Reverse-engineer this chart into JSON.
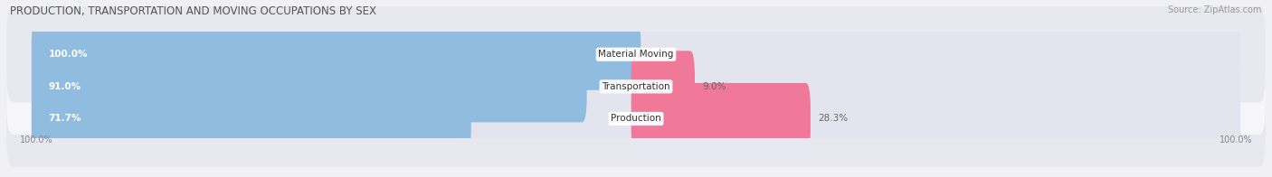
{
  "title": "PRODUCTION, TRANSPORTATION AND MOVING OCCUPATIONS BY SEX",
  "source": "Source: ZipAtlas.com",
  "categories": [
    "Material Moving",
    "Transportation",
    "Production"
  ],
  "male_pct": [
    100.0,
    91.0,
    71.7
  ],
  "female_pct": [
    0.0,
    9.0,
    28.3
  ],
  "male_color": "#90bce0",
  "female_color": "#f07898",
  "bar_bg_color": "#e4e4ee",
  "row_bg_colors": [
    "#e8e8f0",
    "#f5f5fa"
  ],
  "bg_color": "#f0f0f5",
  "title_fontsize": 8.5,
  "source_fontsize": 7,
  "bar_label_fontsize": 7.5,
  "female_label_fontsize": 7.5,
  "cat_label_fontsize": 7.5,
  "axis_label_fontsize": 7,
  "bar_height": 0.62,
  "male_label_color": "white",
  "female_label_color": "#666666",
  "cat_label_color": "#333333"
}
